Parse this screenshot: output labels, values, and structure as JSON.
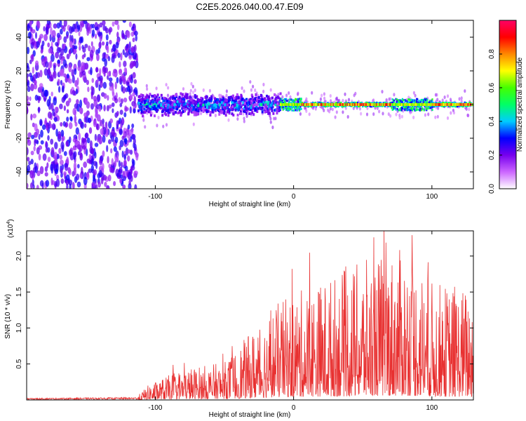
{
  "chart_data": [
    {
      "type": "heatmap",
      "title": "C2E5.2026.040.00.47.E09",
      "xlabel": "Height of straight line (km)",
      "ylabel": "Frequency (Hz)",
      "xlim": [
        -193,
        130
      ],
      "ylim": [
        -50,
        50
      ],
      "xticks": [
        -100,
        0,
        100
      ],
      "xtick_labels": [
        "-100",
        "0",
        "100"
      ],
      "yticks": [
        -40,
        -20,
        0,
        20,
        40
      ],
      "ytick_labels": [
        "-40",
        "-20",
        "0",
        "20",
        "40"
      ],
      "colorbar": {
        "label": "Normalized spectral amplitude",
        "range": [
          0,
          1
        ],
        "ticks": [
          0.0,
          0.2,
          0.4,
          0.6,
          0.8
        ],
        "tick_labels": [
          "0.0",
          "0.2",
          "0.4",
          "0.6",
          "0.8"
        ],
        "colors": [
          "#ffffff",
          "#cc66ff",
          "#7700ee",
          "#0000ff",
          "#00ccff",
          "#00ff66",
          "#44ff00",
          "#ffff00",
          "#ff8800",
          "#ff0000",
          "#ff0066"
        ]
      },
      "regions": [
        {
          "x": [
            -193,
            -113
          ],
          "description_value": "broadband noise, amplitude 0.1-0.3"
        },
        {
          "x": [
            -113,
            -10
          ],
          "band_hz": [
            -5,
            5
          ],
          "amplitude": [
            0.2,
            0.5
          ]
        },
        {
          "x": [
            -10,
            130
          ],
          "band_hz": [
            -1,
            1
          ],
          "amplitude": [
            0.6,
            0.95
          ]
        }
      ]
    },
    {
      "type": "line",
      "xlabel": "Height of straight line (km)",
      "ylabel": "SNR (10 * v/v)",
      "multiplier": "(x10",
      "multiplier_exp": "4",
      "xlim": [
        -193,
        130
      ],
      "ylim": [
        0,
        2.35
      ],
      "xticks": [
        -100,
        0,
        100
      ],
      "xtick_labels": [
        "-100",
        "0",
        "100"
      ],
      "yticks": [
        0.5,
        1.0,
        1.5,
        2.0
      ],
      "ytick_labels": [
        "0.5",
        "1.0",
        "1.5",
        "2.0"
      ],
      "color": "#e83030",
      "envelope": [
        {
          "x": -193,
          "y": 0.02
        },
        {
          "x": -113,
          "y": 0.03
        },
        {
          "x": -105,
          "y": 0.12
        },
        {
          "x": -80,
          "y": 0.25
        },
        {
          "x": -50,
          "y": 0.3
        },
        {
          "x": -30,
          "y": 0.55
        },
        {
          "x": -15,
          "y": 0.75
        },
        {
          "x": 0,
          "y": 0.85
        },
        {
          "x": 20,
          "y": 0.95
        },
        {
          "x": 40,
          "y": 1.05
        },
        {
          "x": 60,
          "y": 1.15
        },
        {
          "x": 80,
          "y": 1.2
        },
        {
          "x": 90,
          "y": 1.1
        },
        {
          "x": 100,
          "y": 0.95
        },
        {
          "x": 115,
          "y": 0.9
        },
        {
          "x": 130,
          "y": 0.9
        }
      ]
    }
  ]
}
